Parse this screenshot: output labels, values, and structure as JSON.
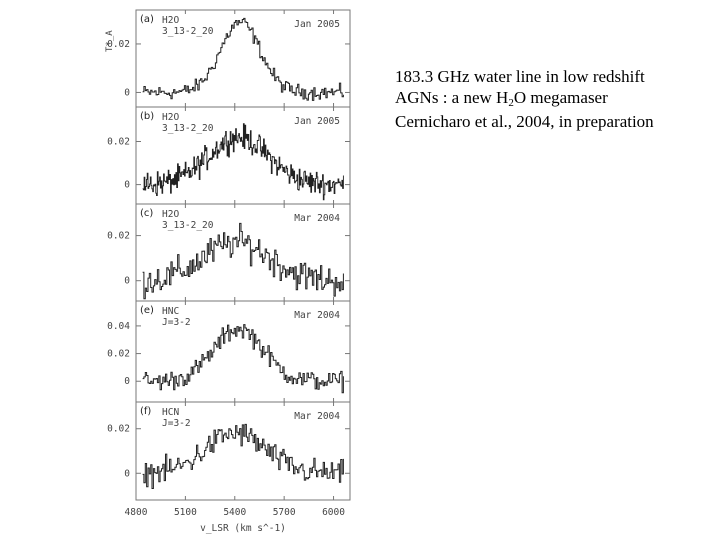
{
  "caption": {
    "line1": "183.3 GHz water line in low redshift",
    "line2_a": "AGNs : a new H",
    "line2_sub": "2",
    "line2_b": "O megamaser",
    "line3": "Cernicharo et al., 2004, in preparation"
  },
  "chart_data": {
    "type": "line",
    "xlabel": "v_LSR (km s^-1)",
    "ylabel": "T*_A",
    "xlim": [
      4800,
      6100
    ],
    "xticks": [
      4800,
      5100,
      5400,
      5700,
      6000
    ],
    "panels": [
      {
        "letter": "(a)",
        "species": "H2O",
        "transition": "3_13-2_20",
        "date": "Jan 2005",
        "ylim": [
          -0.006,
          0.034
        ],
        "yticks": [
          0,
          0.02
        ],
        "center": 5430,
        "width": 120,
        "peak": 0.029,
        "noise": 0.0025
      },
      {
        "letter": "(b)",
        "species": "H2O",
        "transition": "3_13-2_20",
        "date": "Jan 2005",
        "ylim": [
          -0.009,
          0.036
        ],
        "yticks": [
          0,
          0.02
        ],
        "center": 5420,
        "width": 180,
        "peak": 0.022,
        "noise": 0.005
      },
      {
        "letter": "(c)",
        "species": "H2O",
        "transition": "3_13-2_20",
        "date": "Mar 2004",
        "ylim": [
          -0.009,
          0.034
        ],
        "yticks": [
          0,
          0.02
        ],
        "center": 5410,
        "width": 200,
        "peak": 0.017,
        "noise": 0.006
      },
      {
        "letter": "(e)",
        "species": "HNC",
        "transition": "J=3-2",
        "date": "Mar 2004",
        "ylim": [
          -0.015,
          0.058
        ],
        "yticks": [
          0,
          0.02,
          0.04
        ],
        "center": 5420,
        "width": 150,
        "peak": 0.038,
        "noise": 0.006
      },
      {
        "letter": "(f)",
        "species": "HCN",
        "transition": "J=3-2",
        "date": "Mar 2004",
        "ylim": [
          -0.012,
          0.032
        ],
        "yticks": [
          0,
          0.02
        ],
        "center": 5400,
        "width": 180,
        "peak": 0.018,
        "noise": 0.005
      }
    ]
  }
}
